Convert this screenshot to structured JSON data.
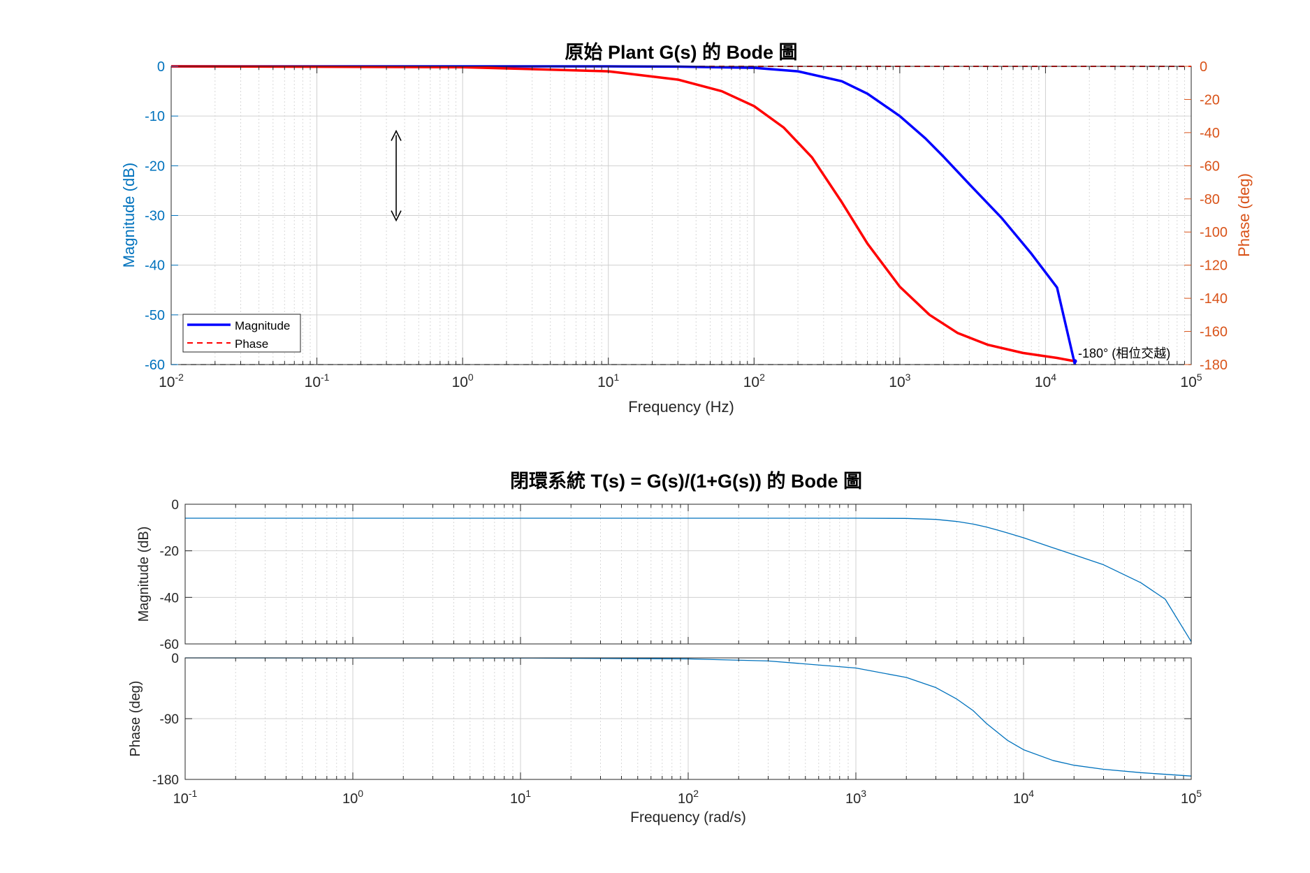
{
  "chart_data": [
    {
      "type": "line",
      "title": "原始 Plant G(s) 的 Bode 圖",
      "xlabel": "Frequency (Hz)",
      "ylabel_left": "Magnitude (dB)",
      "ylabel_right": "Phase (deg)",
      "x_scale": "log",
      "xlim": [
        0.01,
        100000
      ],
      "ylim_left": [
        -60,
        0
      ],
      "ylim_right": [
        -180,
        0
      ],
      "x_ticks": [
        0.01,
        0.1,
        1,
        10,
        100,
        1000,
        10000,
        100000
      ],
      "x_tick_labels": [
        {
          "base": "10",
          "exp": "-2"
        },
        {
          "base": "10",
          "exp": "-1"
        },
        {
          "base": "10",
          "exp": "0"
        },
        {
          "base": "10",
          "exp": "1"
        },
        {
          "base": "10",
          "exp": "2"
        },
        {
          "base": "10",
          "exp": "3"
        },
        {
          "base": "10",
          "exp": "4"
        },
        {
          "base": "10",
          "exp": "5"
        }
      ],
      "y_ticks_left": [
        0,
        -10,
        -20,
        -30,
        -40,
        -50,
        -60
      ],
      "y_tick_labels_left": [
        "0",
        "-10",
        "-20",
        "-30",
        "-40",
        "-50",
        "-60"
      ],
      "y_ticks_right": [
        0,
        -20,
        -40,
        -60,
        -80,
        -100,
        -120,
        -140,
        -160,
        -180
      ],
      "y_tick_labels_right": [
        "0",
        "-20",
        "-40",
        "-60",
        "-80",
        "-100",
        "-120",
        "-140",
        "-160",
        "-180"
      ],
      "grid": true,
      "legend_position": "lower-left",
      "series": [
        {
          "name": "Magnitude",
          "axis": "left",
          "color": "#0000ff",
          "style": "solid",
          "x": [
            0.01,
            1,
            10,
            30,
            100,
            200,
            400,
            600,
            1000,
            1500,
            2000,
            3000,
            5000,
            8000,
            12000,
            15915
          ],
          "y": [
            0,
            0,
            0,
            -0.05,
            -0.3,
            -1.0,
            -3.0,
            -5.5,
            -10.0,
            -14.5,
            -18.2,
            -23.7,
            -30.5,
            -37.7,
            -44.5,
            -60.0
          ]
        },
        {
          "name": "Phase",
          "axis": "right",
          "color": "#ff0000",
          "style": "solid",
          "x": [
            0.01,
            1,
            10,
            30,
            60,
            100,
            160,
            250,
            400,
            600,
            1000,
            1600,
            2500,
            4000,
            7000,
            12000,
            15915
          ],
          "y": [
            0,
            -0.5,
            -3,
            -8,
            -15,
            -24,
            -37,
            -55,
            -82,
            -107,
            -133,
            -150,
            -161,
            -168,
            -173,
            -176,
            -178
          ]
        }
      ],
      "reference_lines": [
        {
          "name": "Phase",
          "axis": "right",
          "value": 0,
          "color": "#ff0000",
          "style": "dashed"
        },
        {
          "axis": "right",
          "value": -180,
          "color": "#000000",
          "style": "dashed"
        }
      ],
      "annotations": [
        {
          "text": "-180° (相位交越)",
          "x": 15915,
          "y_right": -178
        },
        {
          "type": "double-arrow",
          "x": 0.35,
          "y_from": -13,
          "y_to": -31
        }
      ],
      "colors": {
        "left_axis": "#0072bd",
        "right_axis": "#d95319"
      }
    },
    {
      "type": "line",
      "title": "閉環系統 T(s) = G(s)/(1+G(s)) 的 Bode 圖",
      "xlabel": "Frequency  (rad/s)",
      "x_scale": "log",
      "xlim": [
        0.1,
        100000
      ],
      "x_ticks": [
        0.1,
        1,
        10,
        100,
        1000,
        10000,
        100000
      ],
      "x_tick_labels": [
        {
          "base": "10",
          "exp": "-1"
        },
        {
          "base": "10",
          "exp": "0"
        },
        {
          "base": "10",
          "exp": "1"
        },
        {
          "base": "10",
          "exp": "2"
        },
        {
          "base": "10",
          "exp": "3"
        },
        {
          "base": "10",
          "exp": "4"
        },
        {
          "base": "10",
          "exp": "5"
        }
      ],
      "grid": true,
      "panels": [
        {
          "ylabel": "Magnitude (dB)",
          "ylim": [
            -60,
            0
          ],
          "y_ticks": [
            0,
            -20,
            -40,
            -60
          ],
          "y_tick_labels": [
            "0",
            "-20",
            "-40",
            "-60"
          ],
          "series": [
            {
              "color": "#0072bd",
              "x": [
                0.1,
                100,
                1000,
                2000,
                3000,
                4000,
                5000,
                6000,
                7000,
                8000,
                10000,
                15000,
                20000,
                30000,
                50000,
                70000,
                100000
              ],
              "y": [
                -6.0,
                -6.0,
                -6.0,
                -6.1,
                -6.5,
                -7.4,
                -8.5,
                -9.8,
                -11.1,
                -12.3,
                -14.4,
                -18.7,
                -21.7,
                -26.0,
                -33.7,
                -40.8,
                -59.0
              ]
            }
          ]
        },
        {
          "ylabel": "Phase (deg)",
          "ylim": [
            -180,
            0
          ],
          "y_ticks": [
            0,
            -90,
            -180
          ],
          "y_tick_labels": [
            "0",
            "-90",
            "-180"
          ],
          "series": [
            {
              "color": "#0072bd",
              "x": [
                0.1,
                10,
                100,
                300,
                1000,
                2000,
                3000,
                4000,
                5000,
                6000,
                8000,
                10000,
                15000,
                20000,
                30000,
                50000,
                100000
              ],
              "y": [
                0,
                -0.2,
                -1.5,
                -4.5,
                -15,
                -29,
                -44,
                -61,
                -78,
                -97,
                -122,
                -136,
                -152,
                -159,
                -165,
                -170,
                -175
              ]
            }
          ]
        }
      ]
    }
  ]
}
